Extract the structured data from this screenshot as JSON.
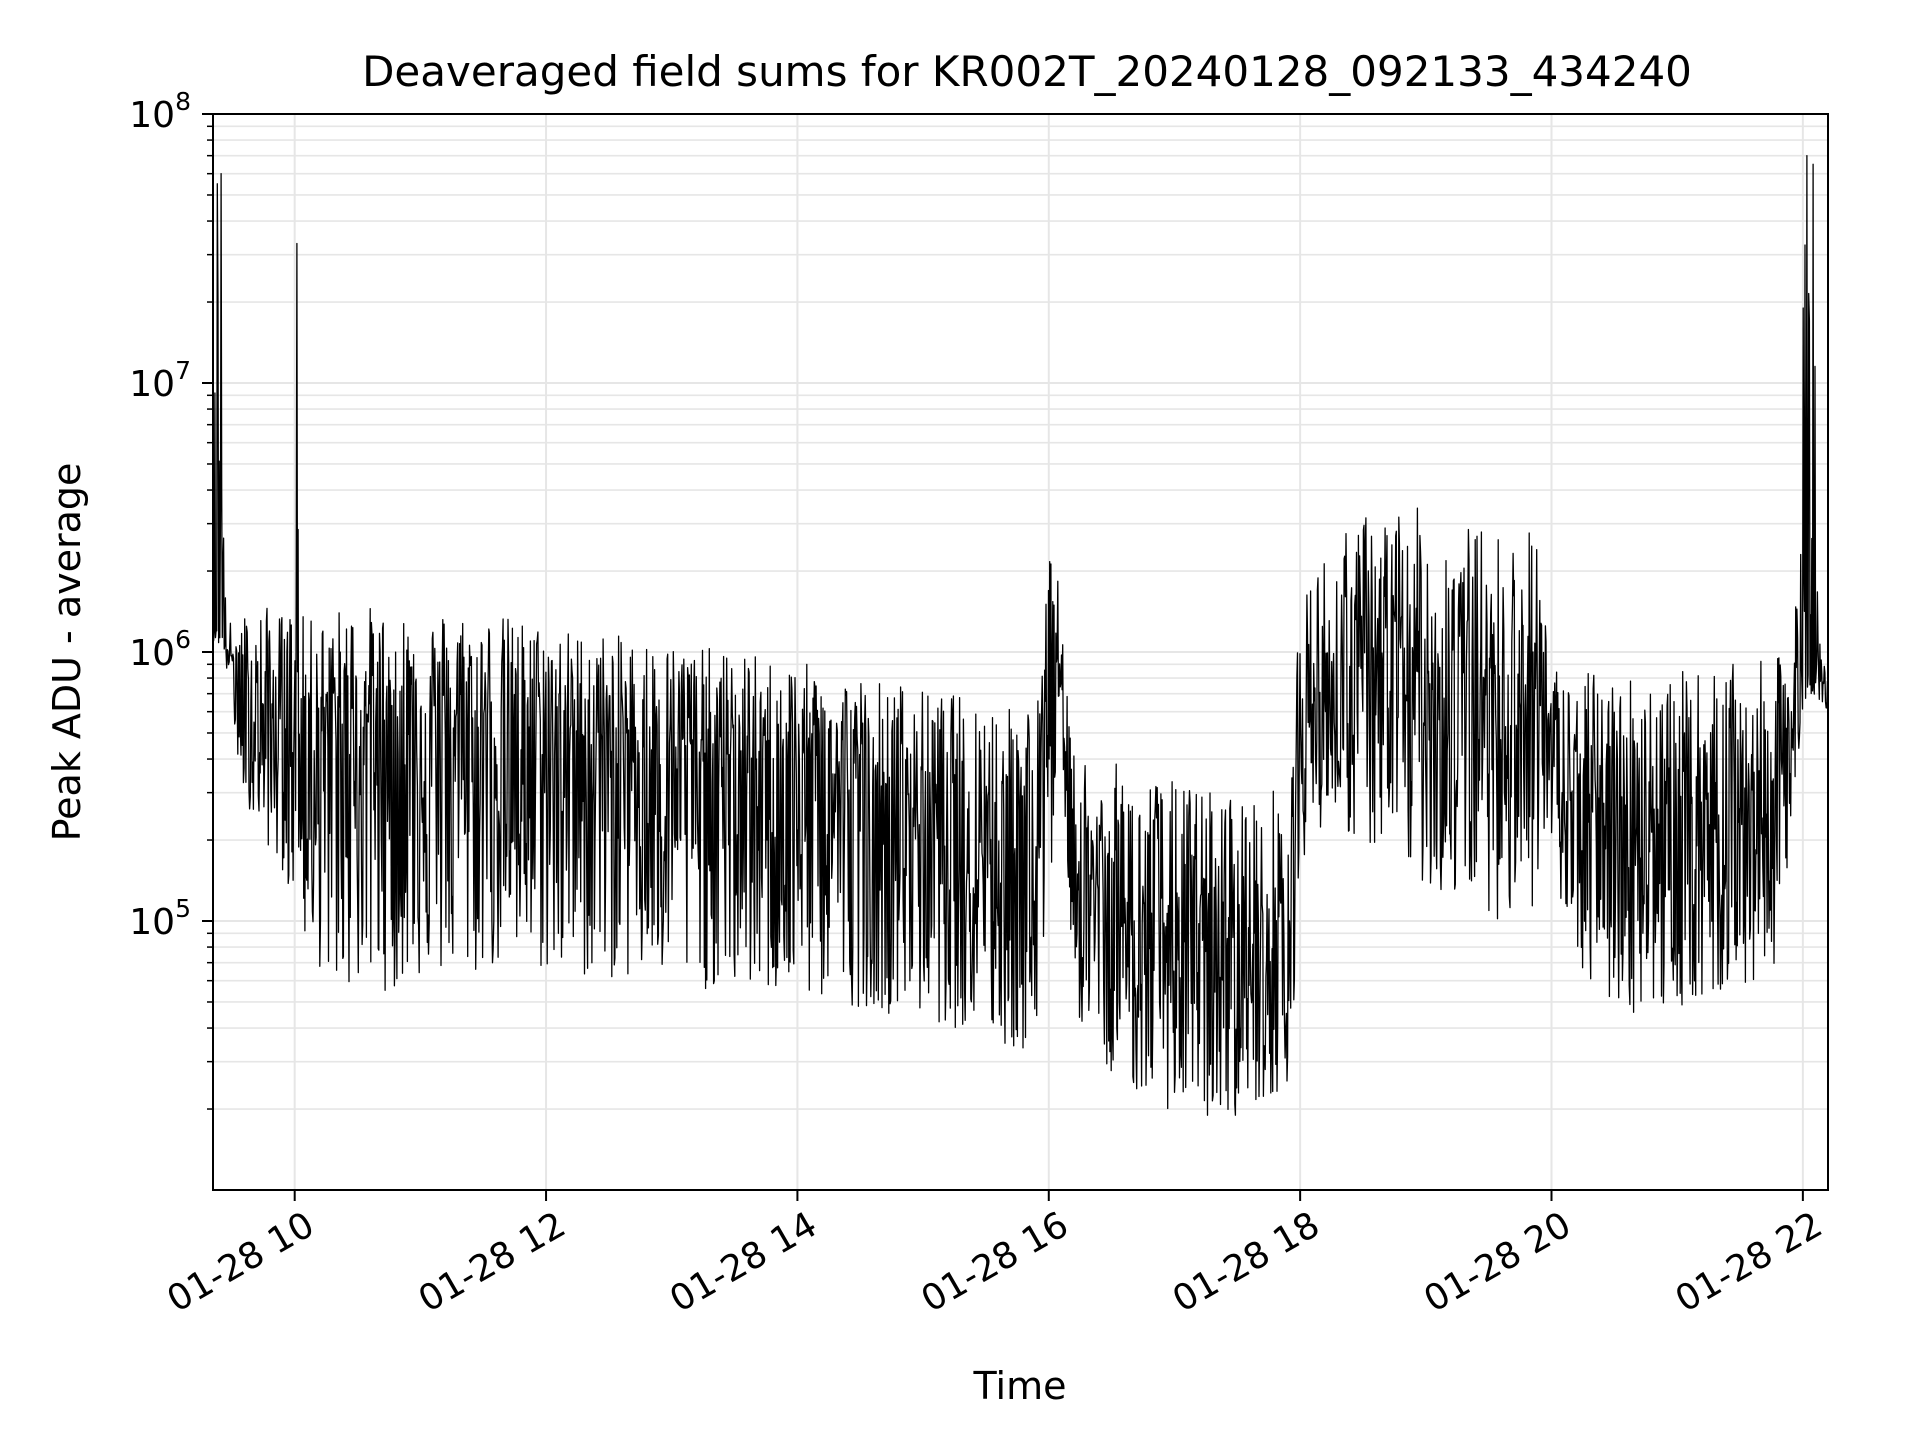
{
  "chart_data": {
    "type": "line",
    "title": "Deaveraged field sums for KR002T_20240128_092133_434240",
    "xlabel": "Time",
    "ylabel": "Peak ADU - average",
    "yscale": "log",
    "ylim": [
      10000,
      100000000
    ],
    "xlim": [
      "2024-01-28 09:21",
      "2024-01-28 22:12"
    ],
    "grid": true,
    "line_color": "#000000",
    "grid_color": "#e6e6e6",
    "x_ticks": [
      {
        "value": "2024-01-28 10:00",
        "label": "01-28 10"
      },
      {
        "value": "2024-01-28 12:00",
        "label": "01-28 12"
      },
      {
        "value": "2024-01-28 14:00",
        "label": "01-28 14"
      },
      {
        "value": "2024-01-28 16:00",
        "label": "01-28 16"
      },
      {
        "value": "2024-01-28 18:00",
        "label": "01-28 18"
      },
      {
        "value": "2024-01-28 20:00",
        "label": "01-28 20"
      },
      {
        "value": "2024-01-28 22:00",
        "label": "01-28 22"
      }
    ],
    "y_ticks": [
      {
        "value": 100000,
        "base": "10",
        "exp": "5"
      },
      {
        "value": 1000000,
        "base": "10",
        "exp": "6"
      },
      {
        "value": 10000000,
        "base": "10",
        "exp": "7"
      },
      {
        "value": 100000000,
        "base": "10",
        "exp": "8"
      }
    ],
    "series": [
      {
        "description": "Envelope of the dense noisy trace, sampled every ~10 minutes",
        "x": [
          "09:21",
          "09:23",
          "09:25",
          "09:27",
          "09:29",
          "09:35",
          "09:45",
          "09:55",
          "10:00",
          "10:01",
          "10:02",
          "10:05",
          "10:15",
          "10:25",
          "10:35",
          "10:45",
          "10:55",
          "11:05",
          "11:15",
          "11:25",
          "11:35",
          "11:45",
          "11:55",
          "12:05",
          "12:15",
          "12:25",
          "12:35",
          "12:45",
          "12:55",
          "13:05",
          "13:15",
          "13:25",
          "13:35",
          "13:45",
          "13:55",
          "14:05",
          "14:15",
          "14:25",
          "14:35",
          "14:45",
          "14:55",
          "15:05",
          "15:15",
          "15:25",
          "15:35",
          "15:45",
          "15:55",
          "16:00",
          "16:05",
          "16:10",
          "16:15",
          "16:25",
          "16:35",
          "16:45",
          "16:55",
          "17:05",
          "17:15",
          "17:25",
          "17:35",
          "17:45",
          "17:55",
          "18:00",
          "18:05",
          "18:15",
          "18:25",
          "18:35",
          "18:45",
          "18:55",
          "19:05",
          "19:15",
          "19:25",
          "19:35",
          "19:45",
          "19:55",
          "20:00",
          "20:05",
          "20:15",
          "20:25",
          "20:35",
          "20:45",
          "20:55",
          "21:05",
          "21:15",
          "21:25",
          "21:35",
          "21:45",
          "21:55",
          "22:00",
          "22:02",
          "22:05",
          "22:08",
          "22:12"
        ],
        "high": [
          4000000,
          55000000,
          60000000,
          1500000,
          1300000,
          1400000,
          1500000,
          1400000,
          1500000,
          33000000,
          1500000,
          1300000,
          1400000,
          1500000,
          1500000,
          1400000,
          1450000,
          1400000,
          1500000,
          1400000,
          1400000,
          1350000,
          1300000,
          1250000,
          1200000,
          1200000,
          1150000,
          1150000,
          1100000,
          1100000,
          1050000,
          1000000,
          1000000,
          950000,
          950000,
          900000,
          850000,
          850000,
          800000,
          800000,
          750000,
          700000,
          700000,
          700000,
          680000,
          700000,
          700000,
          2500000,
          1800000,
          500000,
          450000,
          400000,
          380000,
          360000,
          340000,
          330000,
          320000,
          310000,
          300000,
          320000,
          300000,
          1500000,
          2000000,
          2500000,
          3000000,
          3500000,
          3500000,
          3500000,
          3000000,
          3000000,
          3000000,
          2800000,
          2800000,
          3000000,
          1000000,
          800000,
          850000,
          850000,
          850000,
          850000,
          850000,
          850000,
          850000,
          900000,
          900000,
          950000,
          1000000,
          19000000,
          70000000,
          65000000,
          1100000,
          900000
        ],
        "low": [
          1100000,
          1100000,
          1000000,
          900000,
          700000,
          300000,
          200000,
          150000,
          100000,
          100000,
          100000,
          80000,
          60000,
          55000,
          55000,
          55000,
          60000,
          60000,
          60000,
          60000,
          65000,
          65000,
          65000,
          60000,
          60000,
          60000,
          60000,
          58000,
          58000,
          55000,
          55000,
          55000,
          55000,
          53000,
          50000,
          50000,
          50000,
          48000,
          48000,
          45000,
          45000,
          42000,
          40000,
          38000,
          35000,
          32000,
          30000,
          80000,
          700000,
          100000,
          40000,
          30000,
          25000,
          22000,
          20000,
          20000,
          18000,
          18000,
          20000,
          22000,
          25000,
          150000,
          200000,
          250000,
          200000,
          180000,
          150000,
          150000,
          120000,
          120000,
          120000,
          100000,
          100000,
          120000,
          180000,
          100000,
          60000,
          50000,
          45000,
          45000,
          45000,
          50000,
          50000,
          55000,
          55000,
          60000,
          200000,
          600000,
          700000,
          700000,
          650000,
          600000
        ],
        "typical": [
          1500000,
          1200000,
          1200000,
          1100000,
          1000000,
          700000,
          600000,
          600000,
          650000,
          900000,
          650000,
          620000,
          600000,
          600000,
          600000,
          600000,
          600000,
          580000,
          580000,
          560000,
          560000,
          540000,
          520000,
          520000,
          500000,
          500000,
          480000,
          470000,
          460000,
          450000,
          440000,
          420000,
          400000,
          390000,
          380000,
          360000,
          340000,
          330000,
          320000,
          300000,
          290000,
          280000,
          270000,
          260000,
          250000,
          240000,
          230000,
          800000,
          1200000,
          200000,
          150000,
          130000,
          110000,
          100000,
          95000,
          90000,
          85000,
          85000,
          85000,
          95000,
          100000,
          500000,
          700000,
          800000,
          800000,
          900000,
          900000,
          850000,
          800000,
          800000,
          800000,
          750000,
          750000,
          700000,
          450000,
          300000,
          280000,
          270000,
          260000,
          260000,
          260000,
          270000,
          280000,
          290000,
          300000,
          320000,
          500000,
          1200000,
          900000,
          900000,
          800000,
          750000
        ]
      }
    ]
  }
}
